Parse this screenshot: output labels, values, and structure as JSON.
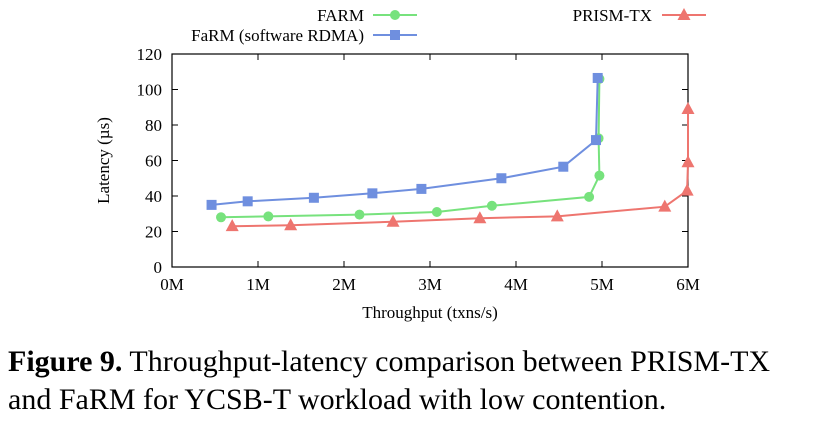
{
  "chart_data": {
    "type": "line",
    "xlabel": "Throughput (txns/s)",
    "ylabel": "Latency (µs)",
    "xlim": [
      0,
      6
    ],
    "ylim": [
      0,
      120
    ],
    "x_ticks": [
      "0M",
      "1M",
      "2M",
      "3M",
      "4M",
      "5M",
      "6M"
    ],
    "y_ticks": [
      "0",
      "20",
      "40",
      "60",
      "80",
      "100",
      "120"
    ],
    "grid": false,
    "legend": "top",
    "series": [
      {
        "name": "FARM",
        "color": "#77e27d",
        "marker": "circle",
        "x": [
          0.57,
          1.12,
          2.18,
          3.08,
          3.72,
          4.85,
          4.97,
          4.96,
          4.97
        ],
        "y": [
          28,
          28.5,
          29.5,
          31,
          34.5,
          39.5,
          51.5,
          72.5,
          106
        ]
      },
      {
        "name": "FaRM (software RDMA)",
        "color": "#6f8fdf",
        "marker": "square",
        "x": [
          0.46,
          0.88,
          1.65,
          2.33,
          2.9,
          3.83,
          4.55,
          4.93,
          4.95
        ],
        "y": [
          35,
          37,
          39,
          41.5,
          44,
          50,
          56.5,
          71.5,
          106.5
        ]
      },
      {
        "name": "PRISM-TX",
        "color": "#ee756f",
        "marker": "triangle",
        "x": [
          0.7,
          1.38,
          2.57,
          3.58,
          4.48,
          5.73,
          5.99,
          6.0,
          6.0
        ],
        "y": [
          23,
          23.5,
          25.5,
          27.5,
          28.5,
          34,
          43,
          59,
          89
        ]
      }
    ]
  },
  "caption": {
    "figure_label": "Figure 9.",
    "text": " Throughput-latency comparison between PRISM-TX and FaRM for YCSB-T workload with low contention."
  }
}
